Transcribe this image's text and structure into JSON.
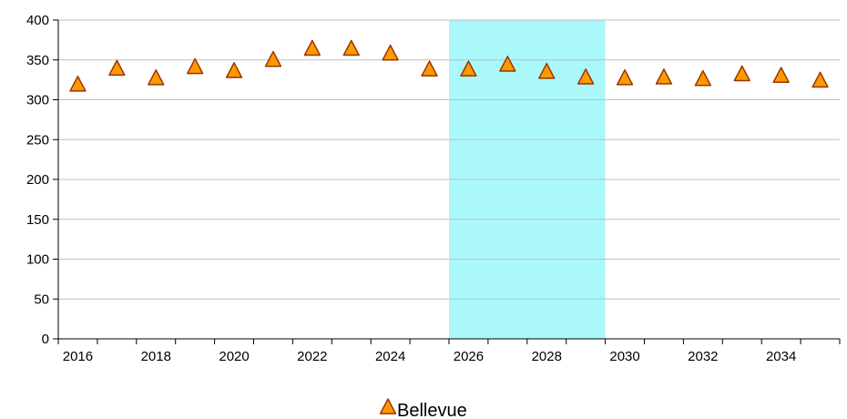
{
  "chart_data": {
    "type": "scatter",
    "title": "",
    "xlabel": "",
    "ylabel": "",
    "x": [
      2016,
      2017,
      2018,
      2019,
      2020,
      2021,
      2022,
      2023,
      2024,
      2025,
      2026,
      2027,
      2028,
      2029,
      2030,
      2031,
      2032,
      2033,
      2034,
      2035
    ],
    "series": [
      {
        "name": "Bellevue",
        "marker": "triangle",
        "color": "#ff9900",
        "edge_color": "#993300",
        "values": [
          318,
          338,
          326,
          340,
          335,
          349,
          363,
          363,
          357,
          337,
          337,
          343,
          334,
          327,
          326,
          327,
          325,
          331,
          329,
          323
        ]
      }
    ],
    "x_ticks": [
      "2016",
      "2018",
      "2020",
      "2022",
      "2024",
      "2026",
      "2028",
      "2030",
      "2032",
      "2034"
    ],
    "y_ticks": [
      "0",
      "50",
      "100",
      "150",
      "200",
      "250",
      "300",
      "350",
      "400"
    ],
    "xlim": [
      2015.5,
      2035.5
    ],
    "ylim": [
      0,
      400
    ],
    "highlight_band": {
      "from": 2025.5,
      "to": 2029.5,
      "color": "#aaf8fa"
    },
    "grid": "horizontal",
    "legend": "bottom-center"
  }
}
